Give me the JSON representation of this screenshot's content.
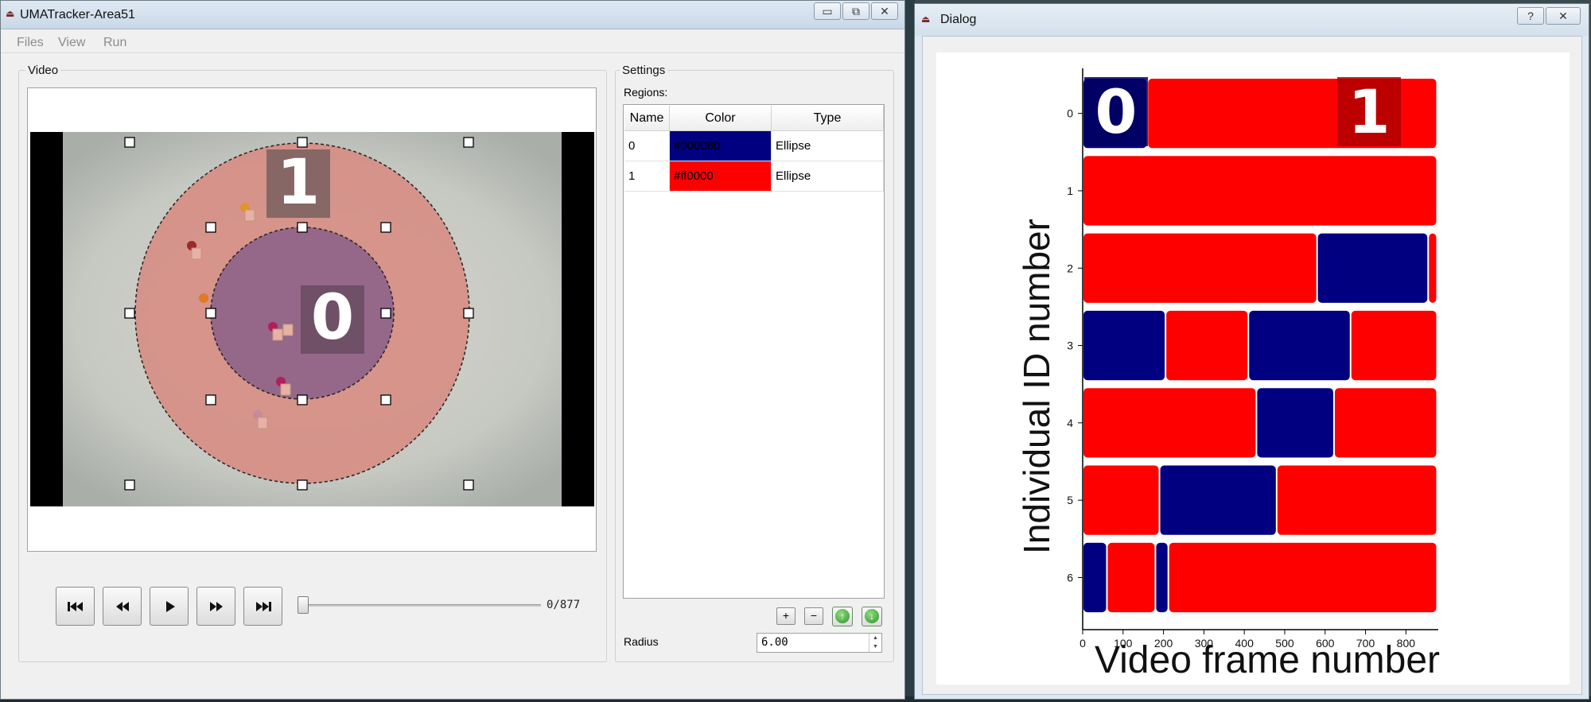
{
  "main_window": {
    "title": "UMATracker-Area51",
    "buttons": {
      "minimize": "▭",
      "restore": "⧉",
      "close": "✕"
    },
    "menu": [
      "Files",
      "View",
      "Run"
    ]
  },
  "video_panel": {
    "label": "Video",
    "region_labels": [
      "0",
      "1"
    ],
    "frame_counter": "0/877",
    "playback_position": 0,
    "controls": [
      "go-to-start",
      "rewind",
      "play",
      "fast-forward",
      "go-to-end"
    ]
  },
  "settings_panel": {
    "label": "Settings",
    "regions_label": "Regions:",
    "table": {
      "headers": [
        "Name",
        "Color",
        "Type"
      ],
      "rows": [
        {
          "name": "0",
          "color": "#000080",
          "type": "Ellipse",
          "swatch": "#000080"
        },
        {
          "name": "1",
          "color": "#ff0000",
          "type": "Ellipse",
          "swatch": "#ff0000"
        }
      ]
    },
    "buttons": {
      "add": "+",
      "remove": "−",
      "move_up": "↑",
      "move_down": "↓"
    },
    "radius_label": "Radius",
    "radius_value": "6.00"
  },
  "dialog": {
    "title": "Dialog",
    "buttons": {
      "help": "?",
      "close": "✕"
    }
  },
  "chart_data": {
    "type": "bar",
    "orientation": "horizontal-stacked-segments",
    "title": "",
    "xlabel": "Video frame number",
    "ylabel": "Individual ID number",
    "xlim": [
      0,
      880
    ],
    "xticks": [
      0,
      100,
      200,
      300,
      400,
      500,
      600,
      700,
      800
    ],
    "categories": [
      "0",
      "1",
      "2",
      "3",
      "4",
      "5",
      "6"
    ],
    "legend_labels": [
      {
        "text": "0",
        "color": "#000080"
      },
      {
        "text": "1",
        "color": "#ff0000"
      }
    ],
    "colors": {
      "region_0": "#000080",
      "region_1": "#ff0000"
    },
    "series": [
      {
        "id": "0",
        "segments": [
          {
            "start": 0,
            "end": 160,
            "region": "0"
          },
          {
            "start": 160,
            "end": 877,
            "region": "1"
          }
        ]
      },
      {
        "id": "1",
        "segments": [
          {
            "start": 0,
            "end": 877,
            "region": "1"
          }
        ]
      },
      {
        "id": "2",
        "segments": [
          {
            "start": 0,
            "end": 580,
            "region": "1"
          },
          {
            "start": 580,
            "end": 855,
            "region": "0"
          },
          {
            "start": 855,
            "end": 877,
            "region": "1"
          }
        ]
      },
      {
        "id": "3",
        "segments": [
          {
            "start": 0,
            "end": 205,
            "region": "0"
          },
          {
            "start": 205,
            "end": 410,
            "region": "1"
          },
          {
            "start": 410,
            "end": 663,
            "region": "0"
          },
          {
            "start": 663,
            "end": 877,
            "region": "1"
          }
        ]
      },
      {
        "id": "4",
        "segments": [
          {
            "start": 0,
            "end": 430,
            "region": "1"
          },
          {
            "start": 430,
            "end": 622,
            "region": "0"
          },
          {
            "start": 622,
            "end": 877,
            "region": "1"
          }
        ]
      },
      {
        "id": "5",
        "segments": [
          {
            "start": 0,
            "end": 190,
            "region": "1"
          },
          {
            "start": 190,
            "end": 480,
            "region": "0"
          },
          {
            "start": 480,
            "end": 877,
            "region": "1"
          }
        ]
      },
      {
        "id": "6",
        "segments": [
          {
            "start": 0,
            "end": 60,
            "region": "0"
          },
          {
            "start": 60,
            "end": 180,
            "region": "1"
          },
          {
            "start": 180,
            "end": 212,
            "region": "0"
          },
          {
            "start": 212,
            "end": 877,
            "region": "1"
          }
        ]
      }
    ]
  }
}
